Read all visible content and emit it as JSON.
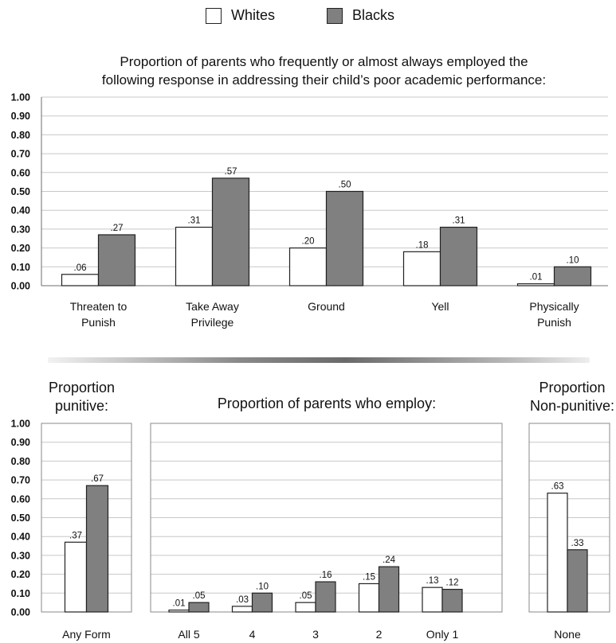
{
  "legend": [
    {
      "label": "Whites",
      "color": "#ffffff"
    },
    {
      "label": "Blacks",
      "color": "#808080"
    }
  ],
  "titles": {
    "top_line1": "Proportion of parents who frequently or almost always employed the",
    "top_line2": "following response in addressing their child’s poor academic performance:",
    "bottom_left_line1": "Proportion",
    "bottom_left_line2": "punitive:",
    "bottom_middle": "Proportion of parents who employ:",
    "bottom_right_line1": "Proportion",
    "bottom_right_line2": "Non-punitive:"
  },
  "chart_data": [
    {
      "type": "bar",
      "title": "Proportion of parents who frequently or almost always employed the following response in addressing their child’s poor academic performance:",
      "categories": [
        [
          "Threaten to",
          "Punish"
        ],
        [
          "Take Away",
          "Privilege"
        ],
        [
          "Ground"
        ],
        [
          "Yell"
        ],
        [
          "Physically",
          "Punish"
        ]
      ],
      "series": [
        {
          "name": "Whites",
          "color": "#ffffff",
          "values": [
            0.06,
            0.31,
            0.2,
            0.18,
            0.01
          ],
          "labels": [
            ".06",
            ".31",
            ".20",
            ".18",
            ".01"
          ]
        },
        {
          "name": "Blacks",
          "color": "#808080",
          "values": [
            0.27,
            0.57,
            0.5,
            0.31,
            0.1
          ],
          "labels": [
            ".27",
            ".57",
            ".50",
            ".31",
            ".10"
          ]
        }
      ],
      "ylim": [
        0,
        1
      ],
      "yticks": [
        "0.00",
        "0.10",
        "0.20",
        "0.30",
        "0.40",
        "0.50",
        "0.60",
        "0.70",
        "0.80",
        "0.90",
        "1.00"
      ],
      "grid": true
    },
    {
      "type": "bar",
      "title": "Proportion punitive:",
      "categories": [
        [
          "Any Form"
        ]
      ],
      "series": [
        {
          "name": "Whites",
          "color": "#ffffff",
          "values": [
            0.37
          ],
          "labels": [
            ".37"
          ]
        },
        {
          "name": "Blacks",
          "color": "#808080",
          "values": [
            0.67
          ],
          "labels": [
            ".67"
          ]
        }
      ],
      "ylim": [
        0,
        1
      ],
      "yticks": [
        "0.00",
        "0.10",
        "0.20",
        "0.30",
        "0.40",
        "0.50",
        "0.60",
        "0.70",
        "0.80",
        "0.90",
        "1.00"
      ],
      "grid": true
    },
    {
      "type": "bar",
      "title": "Proportion of parents who employ:",
      "categories": [
        [
          "All 5"
        ],
        [
          "4"
        ],
        [
          "3"
        ],
        [
          "2"
        ],
        [
          "Only 1"
        ]
      ],
      "series": [
        {
          "name": "Whites",
          "color": "#ffffff",
          "values": [
            0.01,
            0.03,
            0.05,
            0.15,
            0.13
          ],
          "labels": [
            ".01",
            ".03",
            ".05",
            ".15",
            ".13"
          ]
        },
        {
          "name": "Blacks",
          "color": "#808080",
          "values": [
            0.05,
            0.1,
            0.16,
            0.24,
            0.12
          ],
          "labels": [
            ".05",
            ".10",
            ".16",
            ".24",
            ".12"
          ]
        }
      ],
      "ylim": [
        0,
        1
      ],
      "grid": true
    },
    {
      "type": "bar",
      "title": "Proportion Non-punitive:",
      "categories": [
        [
          "None"
        ]
      ],
      "series": [
        {
          "name": "Whites",
          "color": "#ffffff",
          "values": [
            0.63
          ],
          "labels": [
            ".63"
          ]
        },
        {
          "name": "Blacks",
          "color": "#808080",
          "values": [
            0.33
          ],
          "labels": [
            ".33"
          ]
        }
      ],
      "ylim": [
        0,
        1
      ],
      "grid": true
    }
  ]
}
